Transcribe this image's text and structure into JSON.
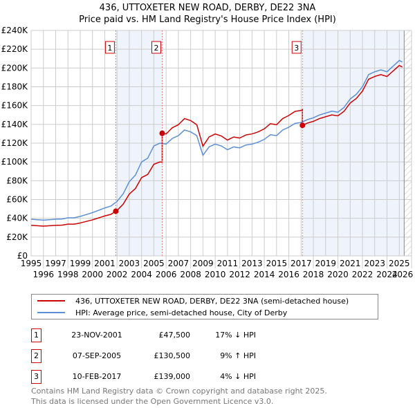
{
  "title": "436, UTTOXETER NEW ROAD, DERBY, DE22 3NA",
  "subtitle": "Price paid vs. HM Land Registry's House Price Index (HPI)",
  "colors": {
    "price": "#cc0000",
    "hpi": "#5b8fd6",
    "shade": "#eef3fc",
    "grid": "#cccccc"
  },
  "chart_data": {
    "type": "line",
    "title": "436, UTTOXETER NEW ROAD, DERBY, DE22 3NA",
    "subtitle": "Price paid vs. HM Land Registry's House Price Index (HPI)",
    "xlim": [
      1995,
      2026
    ],
    "ylim": [
      0,
      240000
    ],
    "grid": true,
    "x_ticks": [
      "1995",
      "1996",
      "1997",
      "1998",
      "1999",
      "2000",
      "2001",
      "2002",
      "2003",
      "2004",
      "2005",
      "2006",
      "2007",
      "2008",
      "2009",
      "2010",
      "2011",
      "2012",
      "2013",
      "2014",
      "2015",
      "2016",
      "2017",
      "2018",
      "2019",
      "2020",
      "2021",
      "2022",
      "2023",
      "2024",
      "2025",
      "2026"
    ],
    "y_ticks": [
      "£0",
      "£20K",
      "£40K",
      "£60K",
      "£80K",
      "£100K",
      "£120K",
      "£140K",
      "£160K",
      "£180K",
      "£200K",
      "£220K",
      "£240K"
    ],
    "forecast_start": 2025.4,
    "series": [
      {
        "name": "436, UTTOXETER NEW ROAD, DERBY, DE22 3NA (semi-detached house)",
        "derived_from": "hpi scaled by latest sale"
      },
      {
        "name": "HPI: Average price, semi-detached house, City of Derby",
        "x": [
          1995,
          1995.5,
          1996,
          1996.5,
          1997,
          1997.5,
          1998,
          1998.5,
          1999,
          1999.5,
          2000,
          2000.5,
          2001,
          2001.5,
          2002,
          2002.5,
          2003,
          2003.5,
          2004,
          2004.5,
          2005,
          2005.5,
          2006,
          2006.5,
          2007,
          2007.5,
          2008,
          2008.5,
          2009,
          2009.5,
          2010,
          2010.5,
          2011,
          2011.5,
          2012,
          2012.5,
          2013,
          2013.5,
          2014,
          2014.5,
          2015,
          2015.5,
          2016,
          2016.5,
          2017,
          2017.5,
          2018,
          2018.5,
          2019,
          2019.5,
          2020,
          2020.5,
          2021,
          2021.5,
          2022,
          2022.5,
          2023,
          2023.5,
          2024,
          2024.5,
          2025,
          2025.3
        ],
        "y": [
          39000,
          38500,
          38000,
          38500,
          39000,
          39200,
          40500,
          40500,
          42000,
          44000,
          46000,
          48500,
          51000,
          53000,
          58000,
          66000,
          79000,
          86000,
          100000,
          104000,
          117000,
          120000,
          119000,
          125000,
          128000,
          134000,
          132000,
          128000,
          107000,
          116000,
          119000,
          117000,
          113000,
          116000,
          115000,
          118000,
          119000,
          121000,
          124000,
          129000,
          128000,
          134000,
          137000,
          141000,
          142000,
          145000,
          147000,
          150000,
          152000,
          154000,
          153000,
          158000,
          167000,
          172000,
          180000,
          193000,
          196000,
          198000,
          196000,
          202000,
          208000,
          206000
        ]
      }
    ],
    "sales": [
      {
        "id": "1",
        "x": 2001.9,
        "price": 47500
      },
      {
        "id": "2",
        "x": 2005.68,
        "price": 130500
      },
      {
        "id": "3",
        "x": 2017.11,
        "price": 139000
      }
    ]
  },
  "legend": {
    "price_label": "436, UTTOXETER NEW ROAD, DERBY, DE22 3NA (semi-detached house)",
    "hpi_label": "HPI: Average price, semi-detached house, City of Derby"
  },
  "transactions": [
    {
      "id": "1",
      "date": "23-NOV-2001",
      "price": "£47,500",
      "hpi": "17% ↓ HPI"
    },
    {
      "id": "2",
      "date": "07-SEP-2005",
      "price": "£130,500",
      "hpi": "9% ↑ HPI"
    },
    {
      "id": "3",
      "date": "10-FEB-2017",
      "price": "£139,000",
      "hpi": "4% ↓ HPI"
    }
  ],
  "footer": {
    "line1": "Contains HM Land Registry data © Crown copyright and database right 2025.",
    "line2": "This data is licensed under the Open Government Licence v3.0."
  }
}
